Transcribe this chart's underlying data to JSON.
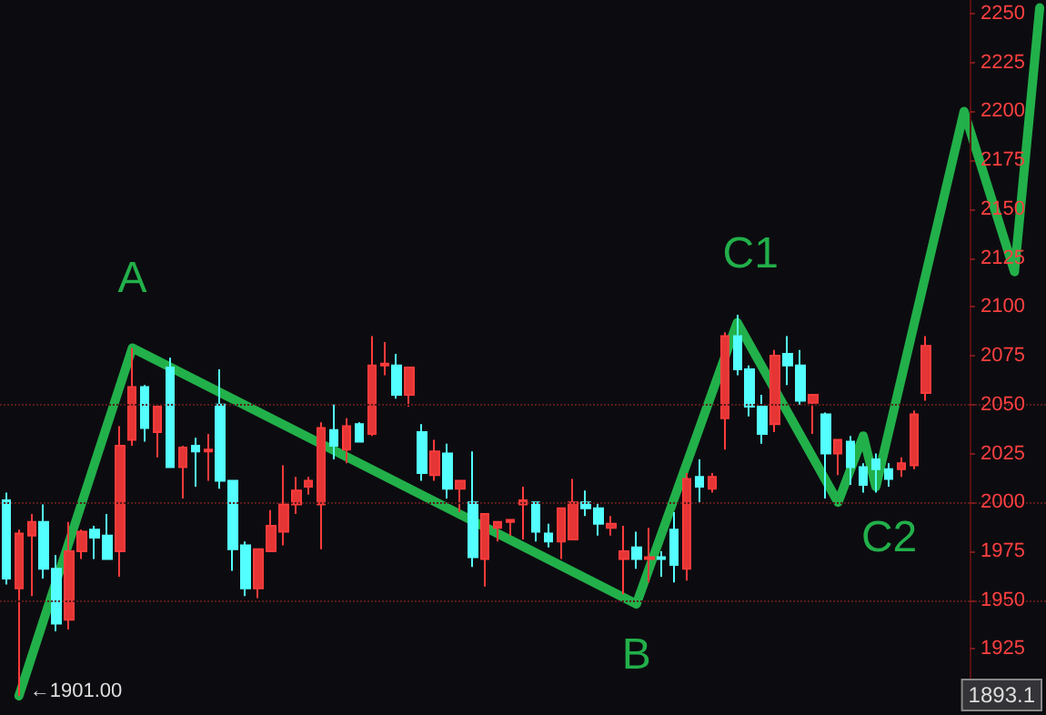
{
  "chart_data": {
    "type": "candlestick",
    "categories": [
      null,
      null,
      null,
      null,
      null,
      null,
      null,
      null,
      null,
      null,
      null,
      null,
      null,
      null,
      null,
      null,
      null,
      null,
      null,
      null,
      null,
      null,
      null,
      null,
      null,
      null,
      null,
      null,
      null,
      null,
      null,
      null,
      null,
      null,
      null,
      null,
      null,
      null,
      null,
      null,
      null,
      null,
      null,
      null,
      null,
      null,
      null,
      null,
      null,
      null,
      null,
      null,
      null,
      null,
      null,
      null,
      null,
      null,
      null,
      null,
      null,
      null,
      null,
      null,
      null,
      null,
      null,
      null,
      null,
      null,
      null,
      null,
      null,
      null,
      null,
      null,
      null,
      null,
      null,
      null,
      null,
      null,
      null
    ],
    "ylim": [
      1894,
      2257
    ],
    "yticks": [
      1925,
      1950,
      1975,
      2000,
      2025,
      2050,
      2075,
      2100,
      2125,
      2150,
      2175,
      2200,
      2225,
      2250
    ],
    "tick_labels": "y",
    "ohlc": [
      [
        2001,
        2005,
        1958,
        1961
      ],
      [
        1956,
        1986,
        1901,
        1984
      ],
      [
        1983,
        1994,
        1952,
        1990
      ],
      [
        1990,
        1999,
        1961,
        1966
      ],
      [
        1966,
        1973,
        1934,
        1938
      ],
      [
        1940,
        1990,
        1935,
        1975
      ],
      [
        1975,
        1986,
        1971,
        1985
      ],
      [
        1986,
        1988,
        1971,
        1982
      ],
      [
        1983,
        1994,
        1971,
        1971
      ],
      [
        1975,
        2039,
        1962,
        2029
      ],
      [
        2032,
        2079,
        2029,
        2059
      ],
      [
        2059,
        2060,
        2031,
        2038
      ],
      [
        2036,
        2050,
        2023,
        2049
      ],
      [
        2069,
        2074,
        2018,
        2018
      ],
      [
        2018,
        2029,
        2002,
        2028
      ],
      [
        2029,
        2033,
        2008,
        2026
      ],
      [
        2026,
        2035,
        2011,
        2027
      ],
      [
        2050,
        2068,
        2007,
        2011
      ],
      [
        2011,
        2011,
        1965,
        1976
      ],
      [
        1978,
        1980,
        1952,
        1956
      ],
      [
        1956,
        1976,
        1951,
        1976
      ],
      [
        1975,
        1996,
        1975,
        1988
      ],
      [
        1985,
        2019,
        1978,
        1999
      ],
      [
        1999,
        2013,
        1994,
        2006
      ],
      [
        2008,
        2013,
        2004,
        2011
      ],
      [
        1999,
        2041,
        1976,
        2038
      ],
      [
        2037,
        2050,
        2022,
        2029
      ],
      [
        2027,
        2043,
        2020,
        2039
      ],
      [
        2040,
        2041,
        2031,
        2031
      ],
      [
        2035,
        2085,
        2034,
        2070
      ],
      [
        2070,
        2082,
        2065,
        2071
      ],
      [
        2070,
        2076,
        2053,
        2055
      ],
      [
        2055,
        2069,
        2049,
        2069
      ],
      [
        2036,
        2040,
        2011,
        2015
      ],
      [
        2014,
        2032,
        2011,
        2026
      ],
      [
        2025,
        2030,
        2002,
        2007
      ],
      [
        2007,
        2011,
        1995,
        2011
      ],
      [
        2000,
        2026,
        1967,
        1972
      ],
      [
        1971,
        1994,
        1957,
        1994
      ],
      [
        1987,
        1990,
        1980,
        1990
      ],
      [
        1990,
        1991,
        1983,
        1991
      ],
      [
        1999,
        2008,
        1981,
        2001
      ],
      [
        2000,
        2000,
        1980,
        1985
      ],
      [
        1984,
        1989,
        1977,
        1980
      ],
      [
        1980,
        1997,
        1971,
        1997
      ],
      [
        1981,
        2012,
        1981,
        2000
      ],
      [
        2000,
        2006,
        1993,
        1997
      ],
      [
        1997,
        2000,
        1983,
        1989
      ],
      [
        1987,
        1993,
        1983,
        1989
      ],
      [
        1971,
        1988,
        1953,
        1975
      ],
      [
        1977,
        1985,
        1966,
        1971
      ],
      [
        1971,
        1987,
        1959,
        1972
      ],
      [
        1972,
        1975,
        1962,
        1971
      ],
      [
        1986,
        1995,
        1959,
        1968
      ],
      [
        1966,
        2015,
        1960,
        2012
      ],
      [
        2013,
        2022,
        2000,
        2008
      ],
      [
        2007,
        2015,
        2005,
        2013
      ],
      [
        2043,
        2087,
        2027,
        2085
      ],
      [
        2085,
        2096,
        2065,
        2068
      ],
      [
        2068,
        2070,
        2044,
        2049
      ],
      [
        2049,
        2055,
        2030,
        2035
      ],
      [
        2040,
        2078,
        2036,
        2075
      ],
      [
        2076,
        2085,
        2060,
        2070
      ],
      [
        2070,
        2078,
        2050,
        2052
      ],
      [
        2051,
        2055,
        2035,
        2055
      ],
      [
        2045,
        2046,
        2002,
        2025
      ],
      [
        2025,
        2032,
        2014,
        2032
      ],
      [
        2031,
        2034,
        2009,
        2018
      ],
      [
        2018,
        2020,
        2005,
        2009
      ],
      [
        2022,
        2025,
        2005,
        2017
      ],
      [
        2017,
        2020,
        2008,
        2012
      ],
      [
        2017,
        2023,
        2013,
        2020
      ],
      [
        2019,
        2047,
        2017,
        2045
      ],
      [
        2056,
        2085,
        2052,
        2080
      ],
      null,
      null,
      null,
      null,
      null,
      null,
      null,
      null,
      null
    ],
    "series": [
      {
        "type": "line",
        "color": "#22b04a",
        "line_style": "solid",
        "values": [
          null,
          1901,
          null,
          null,
          null,
          null,
          null,
          null,
          null,
          null,
          2079,
          null,
          null,
          null,
          null,
          null,
          null,
          null,
          null,
          null,
          null,
          null,
          null,
          null,
          null,
          null,
          null,
          null,
          null,
          null,
          null,
          null,
          null,
          null,
          null,
          null,
          null,
          null,
          null,
          null,
          null,
          null,
          null,
          null,
          null,
          null,
          null,
          null,
          null,
          null,
          1948,
          null,
          null,
          null,
          null,
          null,
          null,
          null,
          2092,
          null,
          null,
          null,
          null,
          null,
          null,
          null,
          2000,
          null,
          2034,
          2008,
          null,
          null,
          null,
          null,
          null,
          null,
          2200,
          null,
          null,
          null,
          2118,
          null,
          2253
        ]
      }
    ],
    "ref_lines": [
      {
        "axis": "y",
        "value": 1950,
        "color": "#5a1a1a",
        "line_style": "dotted"
      },
      {
        "axis": "y",
        "value": 2000,
        "color": "#5a1a1a",
        "line_style": "dotted"
      },
      {
        "axis": "y",
        "value": 2050,
        "color": "#5a1a1a",
        "line_style": "dotted"
      }
    ],
    "annotations": [
      {
        "text": "A",
        "y": 2079
      },
      {
        "text": "B",
        "y": 1948
      },
      {
        "text": "C1",
        "y": 2092
      },
      {
        "text": "C2",
        "y": 2008
      },
      "←1901.00",
      "1893.1"
    ]
  }
}
